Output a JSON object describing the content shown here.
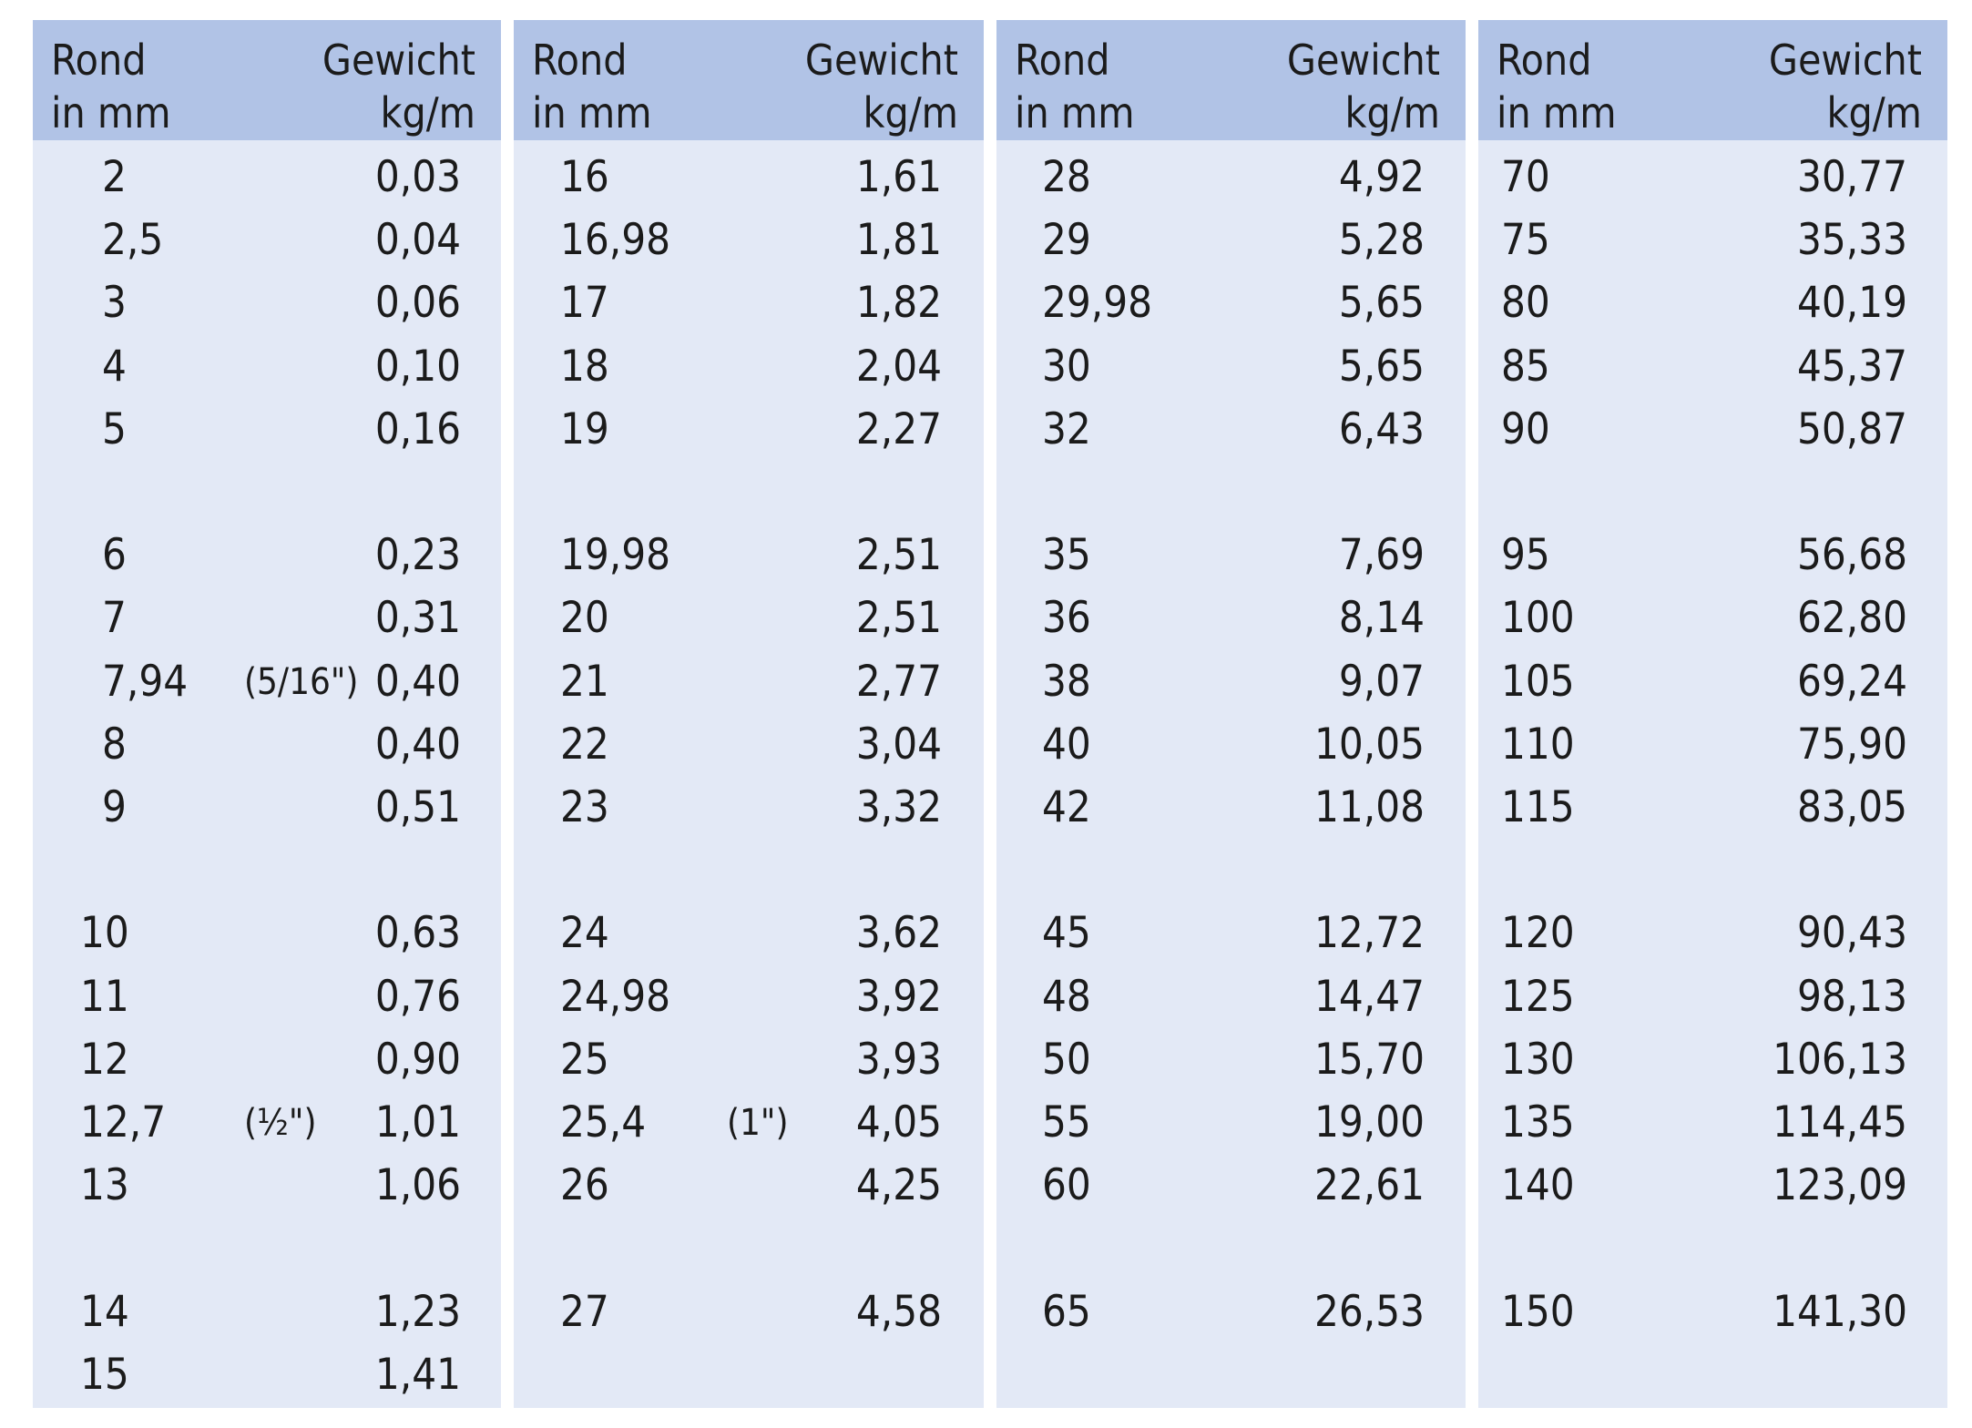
{
  "headers": {
    "rond": "Rond",
    "in_mm": "in mm",
    "gewicht": "Gewicht",
    "kgm": "kg/m"
  },
  "columns": [
    {
      "rows": [
        {
          "d": "2",
          "w": "0,03"
        },
        {
          "d": "2,5",
          "w": "0,04"
        },
        {
          "d": "3",
          "w": "0,06"
        },
        {
          "d": "4",
          "w": "0,10"
        },
        {
          "d": "5",
          "w": "0,16"
        },
        {
          "d": "6",
          "w": "0,23"
        },
        {
          "d": "7",
          "w": "0,31"
        },
        {
          "d": "7,94",
          "inch": "(5/16\")",
          "w": "0,40"
        },
        {
          "d": "8",
          "w": "0,40"
        },
        {
          "d": "9",
          "w": "0,51"
        },
        {
          "d": "10",
          "w": "0,63"
        },
        {
          "d": "11",
          "w": "0,76"
        },
        {
          "d": "12",
          "w": "0,90"
        },
        {
          "d": "12,7",
          "inch": "(½\")",
          "w": "1,01"
        },
        {
          "d": "13",
          "w": "1,06"
        },
        {
          "d": "14",
          "w": "1,23"
        },
        {
          "d": "15",
          "w": "1,41"
        }
      ]
    },
    {
      "rows": [
        {
          "d": "16",
          "w": "1,61"
        },
        {
          "d": "16,98",
          "w": "1,81"
        },
        {
          "d": "17",
          "w": "1,82"
        },
        {
          "d": "18",
          "w": "2,04"
        },
        {
          "d": "19",
          "w": "2,27"
        },
        {
          "d": "19,98",
          "w": "2,51"
        },
        {
          "d": "20",
          "w": "2,51"
        },
        {
          "d": "21",
          "w": "2,77"
        },
        {
          "d": "22",
          "w": "3,04"
        },
        {
          "d": "23",
          "w": "3,32"
        },
        {
          "d": "24",
          "w": "3,62"
        },
        {
          "d": "24,98",
          "w": "3,92"
        },
        {
          "d": "25",
          "w": "3,93"
        },
        {
          "d": "25,4",
          "inch": "(1\")",
          "w": "4,05"
        },
        {
          "d": "26",
          "w": "4,25"
        },
        {
          "d": "27",
          "w": "4,58"
        }
      ]
    },
    {
      "rows": [
        {
          "d": "28",
          "w": "4,92"
        },
        {
          "d": "29",
          "w": "5,28"
        },
        {
          "d": "29,98",
          "w": "5,65"
        },
        {
          "d": "30",
          "w": "5,65"
        },
        {
          "d": "32",
          "w": "6,43"
        },
        {
          "d": "35",
          "w": "7,69"
        },
        {
          "d": "36",
          "w": "8,14"
        },
        {
          "d": "38",
          "w": "9,07"
        },
        {
          "d": "40",
          "w": "10,05"
        },
        {
          "d": "42",
          "w": "11,08"
        },
        {
          "d": "45",
          "w": "12,72"
        },
        {
          "d": "48",
          "w": "14,47"
        },
        {
          "d": "50",
          "w": "15,70"
        },
        {
          "d": "55",
          "w": "19,00"
        },
        {
          "d": "60",
          "w": "22,61"
        },
        {
          "d": "65",
          "w": "26,53"
        }
      ]
    },
    {
      "rows": [
        {
          "d": "70",
          "w": "30,77"
        },
        {
          "d": "75",
          "w": "35,33"
        },
        {
          "d": "80",
          "w": "40,19"
        },
        {
          "d": "85",
          "w": "45,37"
        },
        {
          "d": "90",
          "w": "50,87"
        },
        {
          "d": "95",
          "w": "56,68"
        },
        {
          "d": "100",
          "w": "62,80"
        },
        {
          "d": "105",
          "w": "69,24"
        },
        {
          "d": "110",
          "w": "75,90"
        },
        {
          "d": "115",
          "w": "83,05"
        },
        {
          "d": "120",
          "w": "90,43"
        },
        {
          "d": "125",
          "w": "98,13"
        },
        {
          "d": "130",
          "w": "106,13"
        },
        {
          "d": "135",
          "w": "114,45"
        },
        {
          "d": "140",
          "w": "123,09"
        },
        {
          "d": "150",
          "w": "141,30"
        }
      ]
    }
  ]
}
